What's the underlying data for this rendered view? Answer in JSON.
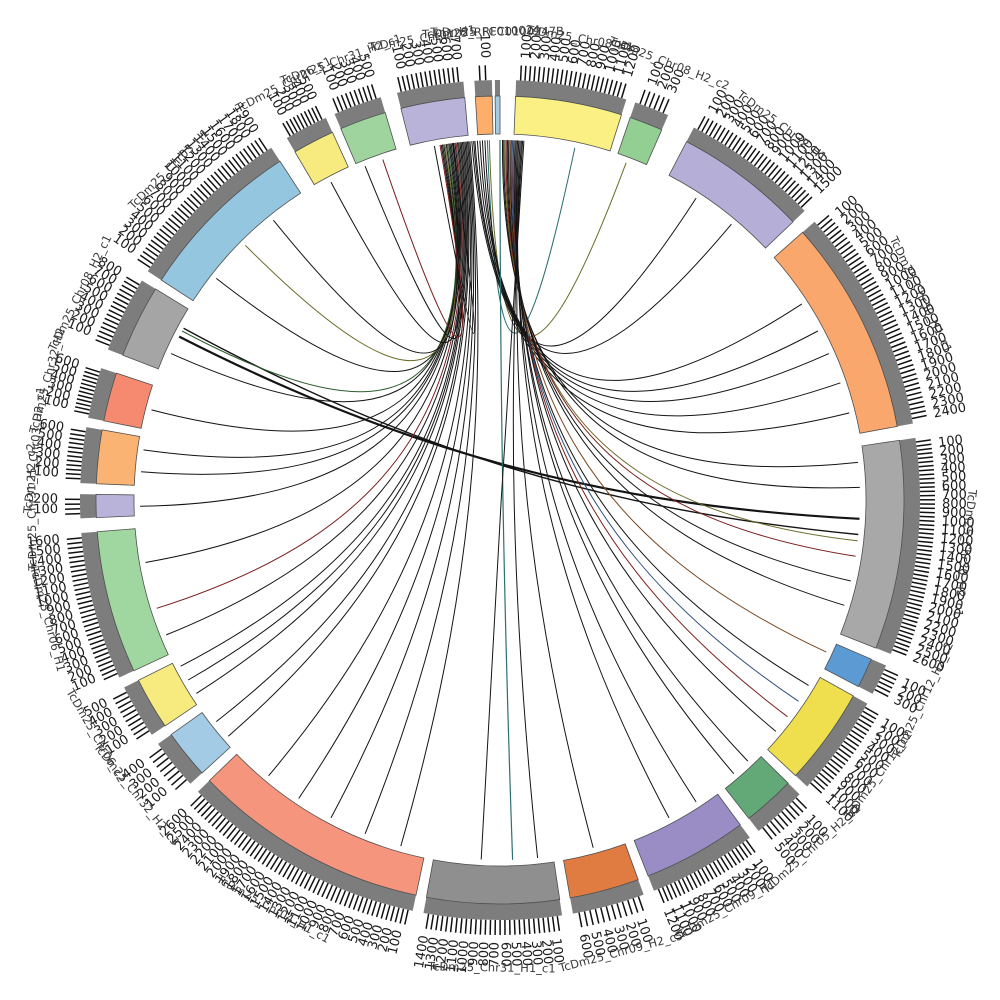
{
  "chart_data": {
    "type": "chord",
    "title": "",
    "description": "Circular synteny / assembly comparison plot (circos-style) of TcDm25 chromosome and contig segments with tick scales and cross-links",
    "tick_minor_interval": 50,
    "tick_label_interval": 100,
    "style": {
      "track_gray": "#7d7d7d",
      "segment_outline": "#4f4f4f",
      "link_default_color": "#141414",
      "tick_color": "#111111",
      "number_color": "#1a1a1a",
      "name_color": "#3a3a3a"
    },
    "segments": [
      {
        "id": "chr08_h1",
        "label": "TcDm25_Chr08_H1",
        "color": "#faf083",
        "start": 2.2,
        "end": 17.5,
        "max": 1200
      },
      {
        "id": "chr08_h2_c2",
        "label": "TcDm25_Chr08_H2_c2",
        "color": "#93ce93",
        "start": 18.8,
        "end": 23.6,
        "max": 300
      },
      {
        "id": "chr32_h1",
        "label": "TcDm25_Chr32_H1",
        "color": "#b5afd7",
        "start": 27.5,
        "end": 46.5,
        "max": 1500
      },
      {
        "id": "chr30_h1_c1",
        "label": "TcDm25_Chr30_H1_c1",
        "color": "#f9a76c",
        "start": 48.5,
        "end": 79.5,
        "max": 2400
      },
      {
        "id": "chr30_h2_c1",
        "label": "TcDm25_Chr30_H2_c1",
        "color": "#a8a8a8",
        "start": 81.5,
        "end": 111.5,
        "max": 2600
      },
      {
        "id": "chr12_h2_c2",
        "label": "TcDm25_Chr12_H2_c2",
        "color": "#5b9ad2",
        "start": 113.2,
        "end": 117.5,
        "max": 300
      },
      {
        "id": "chr12_c2",
        "label": "TcDm25_Chr12_c2",
        "color": "#efdf4e",
        "start": 119.0,
        "end": 133.0,
        "max": 1100
      },
      {
        "id": "chr05_h2_c2",
        "label": "TcDm25_Chr05_H2_c2",
        "color": "#63a877",
        "start": 134.5,
        "end": 142.0,
        "max": 500
      },
      {
        "id": "chr09_h1",
        "label": "TcDm25_Chr09_H1",
        "color": "#9a8cc5",
        "start": 143.5,
        "end": 158.5,
        "max": 1200
      },
      {
        "id": "chr09_h2_c5",
        "label": "TcDm25_Chr09_H2_c5",
        "color": "#e07b42",
        "start": 160.0,
        "end": 170.0,
        "max": 600
      },
      {
        "id": "chr31_h1_c1",
        "label": "TcDm25_Chr31_H1_c1",
        "color": "#8f8f8f",
        "start": 171.5,
        "end": 190.5,
        "max": 1400
      },
      {
        "id": "chr04_h1_c1",
        "label": "TcDm25_Chr04_H1_c1",
        "color": "#f6957d",
        "start": 192.0,
        "end": 226.0,
        "max": 2600
      },
      {
        "id": "chr32_h2_c3",
        "label": "TcDm25_Chr32_H2_c3",
        "color": "#a3cbe5",
        "start": 227.5,
        "end": 234.5,
        "max": 400
      },
      {
        "id": "chr06_c2",
        "label": "TcDm25_Chr06_c2",
        "color": "#f7ea7e",
        "start": 236.0,
        "end": 243.5,
        "max": 500
      },
      {
        "id": "chr06_h1",
        "label": "TcDm25_Chr06_H1",
        "color": "#a0d6a0",
        "start": 245.0,
        "end": 265.5,
        "max": 1600
      },
      {
        "id": "chr31_h2_c2",
        "label": "TcDm25_Chr31_H2_c2",
        "color": "#b9b3d9",
        "start": 267.5,
        "end": 270.8,
        "max": 200
      },
      {
        "id": "chr03_h2_c1",
        "label": "TcDm25_Chr03_H2_c1",
        "color": "#fbb373",
        "start": 272.3,
        "end": 280.0,
        "max": 600
      },
      {
        "id": "chr32_h2",
        "label": "TcDm25_Chr32_H2",
        "color": "#f58a70",
        "start": 281.3,
        "end": 288.3,
        "max": 600
      },
      {
        "id": "chr08_h2_c1",
        "label": "TcDm25_Chr08_H2_c1",
        "color": "#a5a5a5",
        "start": 291.0,
        "end": 301.5,
        "max": 800
      },
      {
        "id": "chr03_h1",
        "label": "TcDm25_Chr03_H1",
        "color": "#94c6e0",
        "start": 303.0,
        "end": 327.0,
        "max": 1900
      },
      {
        "id": "chr26_c1",
        "label": "TcDm25_Chr26_c1",
        "color": "#f7ea7e",
        "start": 329.5,
        "end": 335.5,
        "max": 500
      },
      {
        "id": "chr31_h2_c1",
        "label": "TcDm25_Chr31_H2_c1",
        "color": "#9fd49f",
        "start": 336.8,
        "end": 343.5,
        "max": 500
      },
      {
        "id": "chr01_h1",
        "label": "TcDm25_Chr01_H1",
        "color": "#b9b3d9",
        "start": 345.8,
        "end": 355.0,
        "max": 700
      },
      {
        "id": "rfc010024",
        "label": "TcDm25_RFC010024",
        "color": "#fdae6b",
        "start": 356.5,
        "end": 358.9,
        "max": 100
      },
      {
        "id": "rfc0100247b",
        "label": "TcDm25_RFC0100247B",
        "color": "#a3cbe5",
        "start": 359.3,
        "end": 360.0,
        "max": 0
      }
    ],
    "links": [
      {
        "from": 358.0,
        "to": 12.0,
        "color": "#2f6f6f",
        "width": 1
      },
      {
        "from": 358.3,
        "to": 20.5,
        "color": "#6b6b2a",
        "width": 1
      },
      {
        "from": 357.6,
        "to": 33.0,
        "color": "#141414",
        "width": 1
      },
      {
        "from": 357.2,
        "to": 40.0,
        "color": "#141414",
        "width": 1
      },
      {
        "from": 356.8,
        "to": 57.0,
        "color": "#141414",
        "width": 1
      },
      {
        "from": 356.4,
        "to": 62.0,
        "color": "#141414",
        "width": 1
      },
      {
        "from": 356.0,
        "to": 66.0,
        "color": "#141414",
        "width": 1
      },
      {
        "from": 355.8,
        "to": 71.0,
        "color": "#141414",
        "width": 1
      },
      {
        "from": 355.5,
        "to": 76.0,
        "color": "#141414",
        "width": 1
      },
      {
        "from": 0.4,
        "to": 84.0,
        "color": "#141414",
        "width": 1
      },
      {
        "from": 0.6,
        "to": 88.0,
        "color": "#141414",
        "width": 1
      },
      {
        "from": 297.0,
        "to": 93.0,
        "color": "#141414",
        "width": 2.2
      },
      {
        "from": 298.5,
        "to": 95.5,
        "color": "#141414",
        "width": 1.4
      },
      {
        "from": 0.8,
        "to": 96.5,
        "color": "#6b6b2a",
        "width": 1
      },
      {
        "from": 1.0,
        "to": 99.0,
        "color": "#7a1f1f",
        "width": 1
      },
      {
        "from": 1.2,
        "to": 103.0,
        "color": "#141414",
        "width": 1
      },
      {
        "from": 1.4,
        "to": 107.0,
        "color": "#141414",
        "width": 1
      },
      {
        "from": 1.6,
        "to": 115.0,
        "color": "#7a4a22",
        "width": 1
      },
      {
        "from": 1.8,
        "to": 121.0,
        "color": "#141414",
        "width": 1
      },
      {
        "from": 2.0,
        "to": 124.0,
        "color": "#2f4f7f",
        "width": 1
      },
      {
        "from": 2.2,
        "to": 127.0,
        "color": "#7a1f1f",
        "width": 1
      },
      {
        "from": 2.4,
        "to": 130.0,
        "color": "#141414",
        "width": 1
      },
      {
        "from": 2.6,
        "to": 136.5,
        "color": "#141414",
        "width": 1
      },
      {
        "from": 2.8,
        "to": 139.5,
        "color": "#141414",
        "width": 1
      },
      {
        "from": 3.0,
        "to": 147.0,
        "color": "#141414",
        "width": 1
      },
      {
        "from": 3.2,
        "to": 152.0,
        "color": "#141414",
        "width": 1
      },
      {
        "from": 3.4,
        "to": 165.0,
        "color": "#141414",
        "width": 1
      },
      {
        "from": 0.0,
        "to": 178.0,
        "color": "#2f6f6f",
        "width": 1.2
      },
      {
        "from": 3.6,
        "to": 174.0,
        "color": "#141414",
        "width": 1
      },
      {
        "from": 3.8,
        "to": 183.0,
        "color": "#141414",
        "width": 1
      },
      {
        "from": 355.2,
        "to": 196.0,
        "color": "#141414",
        "width": 1
      },
      {
        "from": 355.0,
        "to": 202.0,
        "color": "#141414",
        "width": 1
      },
      {
        "from": 354.8,
        "to": 208.0,
        "color": "#141414",
        "width": 1
      },
      {
        "from": 354.6,
        "to": 214.0,
        "color": "#141414",
        "width": 1
      },
      {
        "from": 354.4,
        "to": 220.0,
        "color": "#141414",
        "width": 1
      },
      {
        "from": 354.2,
        "to": 229.0,
        "color": "#141414",
        "width": 1
      },
      {
        "from": 354.0,
        "to": 232.0,
        "color": "#141414",
        "width": 1
      },
      {
        "from": 353.8,
        "to": 237.5,
        "color": "#141414",
        "width": 1
      },
      {
        "from": 353.6,
        "to": 240.0,
        "color": "#141414",
        "width": 1
      },
      {
        "from": 353.4,
        "to": 242.5,
        "color": "#141414",
        "width": 1
      },
      {
        "from": 353.2,
        "to": 248.0,
        "color": "#141414",
        "width": 1
      },
      {
        "from": 353.0,
        "to": 252.5,
        "color": "#7a1f1f",
        "width": 1
      },
      {
        "from": 352.8,
        "to": 260.0,
        "color": "#141414",
        "width": 1
      },
      {
        "from": 352.6,
        "to": 269.0,
        "color": "#141414",
        "width": 1
      },
      {
        "from": 352.4,
        "to": 274.5,
        "color": "#141414",
        "width": 1
      },
      {
        "from": 352.2,
        "to": 278.0,
        "color": "#141414",
        "width": 1
      },
      {
        "from": 352.0,
        "to": 284.5,
        "color": "#141414",
        "width": 1
      },
      {
        "from": 351.8,
        "to": 294.0,
        "color": "#141414",
        "width": 1
      },
      {
        "from": 351.6,
        "to": 298.0,
        "color": "#2e5e2e",
        "width": 1
      },
      {
        "from": 351.4,
        "to": 308.0,
        "color": "#141414",
        "width": 1
      },
      {
        "from": 351.2,
        "to": 315.0,
        "color": "#6b6b2a",
        "width": 1
      },
      {
        "from": 351.0,
        "to": 321.0,
        "color": "#141414",
        "width": 1
      },
      {
        "from": 350.8,
        "to": 332.0,
        "color": "#141414",
        "width": 1
      },
      {
        "from": 350.6,
        "to": 338.0,
        "color": "#141414",
        "width": 1
      },
      {
        "from": 350.4,
        "to": 341.0,
        "color": "#7a1f1f",
        "width": 1
      },
      {
        "from": 349.5,
        "to": 352.5,
        "color": "#141414",
        "width": 1
      }
    ]
  }
}
